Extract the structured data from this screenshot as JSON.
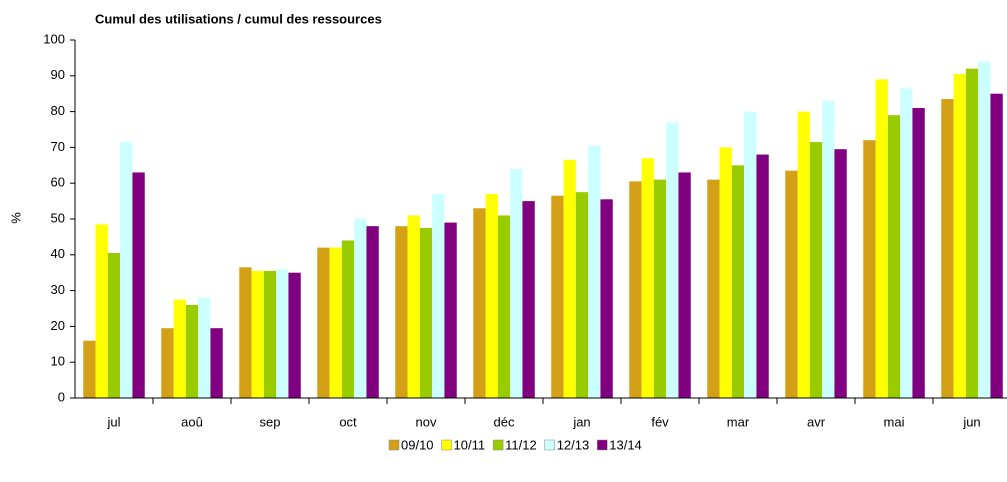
{
  "chart_data": {
    "type": "bar",
    "title": "Cumul des utilisations / cumul des ressources",
    "y_label": "%",
    "categories": [
      "jul",
      "aoû",
      "sep",
      "oct",
      "nov",
      "déc",
      "jan",
      "fév",
      "mar",
      "avr",
      "mai",
      "jun"
    ],
    "series": [
      {
        "name": "09/10",
        "color": "#d4a017",
        "values": [
          16,
          19.5,
          36.5,
          42,
          48,
          53,
          56.5,
          60.5,
          61,
          63.5,
          72,
          83.5
        ]
      },
      {
        "name": "10/11",
        "color": "#ffff00",
        "values": [
          48.5,
          27.5,
          35.5,
          42,
          51,
          57,
          66.5,
          67,
          70,
          80,
          89,
          90.5
        ]
      },
      {
        "name": "11/12",
        "color": "#99cc00",
        "values": [
          40.5,
          26,
          35.5,
          44,
          47.5,
          51,
          57.5,
          61,
          65,
          71.5,
          79,
          92
        ]
      },
      {
        "name": "12/13",
        "color": "#ccffff",
        "values": [
          71.5,
          28,
          36,
          50,
          57,
          64,
          70.5,
          77,
          80,
          83,
          86.5,
          94
        ]
      },
      {
        "name": "13/14",
        "color": "#800080",
        "values": [
          63,
          19.5,
          35,
          48,
          49,
          55,
          55.5,
          63,
          68,
          69.5,
          81,
          85
        ]
      }
    ],
    "ylim": [
      0,
      100
    ],
    "yticks": [
      0,
      10,
      20,
      30,
      40,
      50,
      60,
      70,
      80,
      90,
      100
    ],
    "grid": false,
    "legend": "bottom"
  }
}
